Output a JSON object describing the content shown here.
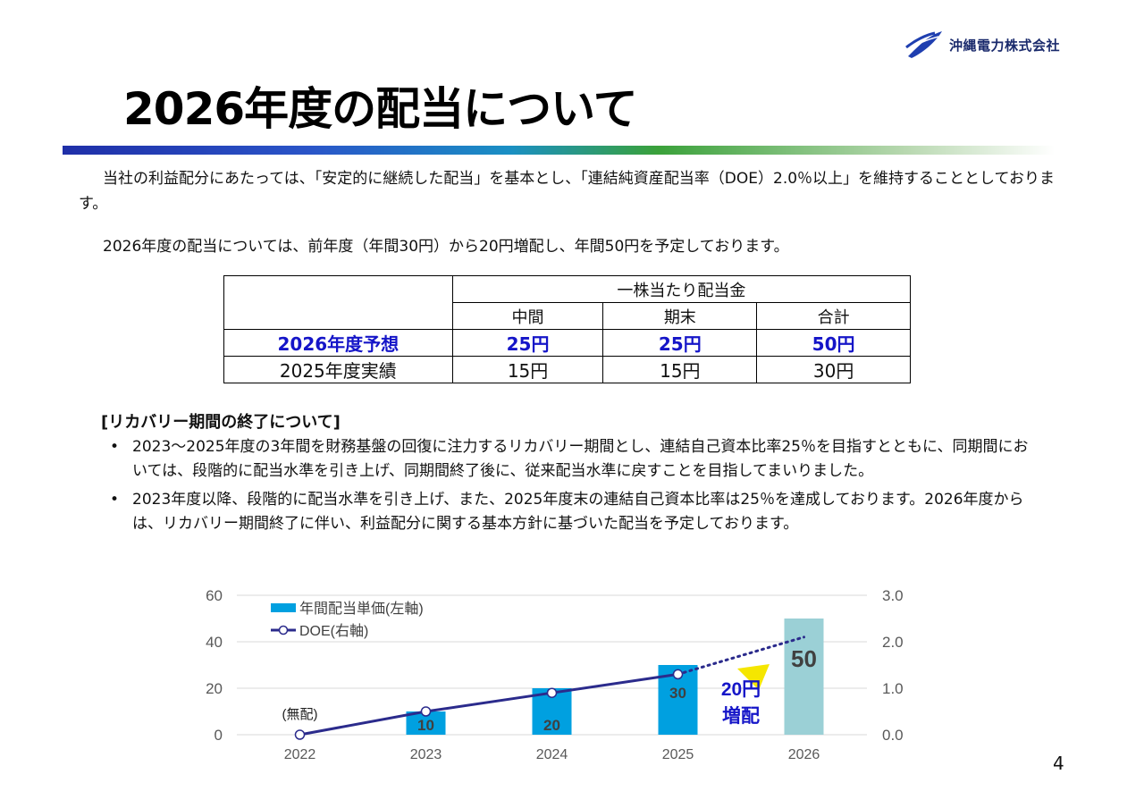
{
  "header": {
    "company_name": "沖縄電力株式会社",
    "logo_icon": "okiden-logo-icon",
    "title": "2026年度の配当について"
  },
  "intro": {
    "p1": "当社の利益配分にあたっては、「安定的に継続した配当」を基本とし、「連結純資産配当率（DOE）2.0％以上」を維持することとしております。",
    "p2": "2026年度の配当については、前年度（年間30円）から20円増配し、年間50円を予定しております。"
  },
  "dividend_table": {
    "group_header": "一株当たり配当金",
    "columns": [
      "中間",
      "期末",
      "合計"
    ],
    "rows": [
      {
        "label": "2026年度予想",
        "values": [
          "25円",
          "25円",
          "50円"
        ]
      },
      {
        "label": "2025年度実績",
        "values": [
          "15円",
          "15円",
          "30円"
        ]
      }
    ]
  },
  "recovery": {
    "heading": "[リカバリー期間の終了について]",
    "bullet_char": "•",
    "bullets": [
      "2023～2025年度の3年間を財務基盤の回復に注力するリカバリー期間とし、連結自己資本比率25％を目指すとともに、同期間においては、段階的に配当水準を引き上げ、同期間終了後に、従来配当水準に戻すことを目指してまいりました。",
      "2023年度以降、段階的に配当水準を引き上げ、また、2025年度末の連結自己資本比率は25％を達成しております。2026年度からは、リカバリー期間終了に伴い、利益配分に関する基本方針に基づいた配当を予定しております。"
    ]
  },
  "chart_data": {
    "type": "bar",
    "categories": [
      "2022",
      "2023",
      "2024",
      "2025",
      "2026"
    ],
    "series": [
      {
        "name": "年間配当単価(左軸)",
        "type": "bar",
        "axis": "left",
        "values": [
          0,
          10,
          20,
          30,
          50
        ],
        "labels": [
          "",
          "10",
          "20",
          "30",
          "50"
        ],
        "colors": [
          "#00a0e0",
          "#00a0e0",
          "#00a0e0",
          "#00a0e0",
          "#9bd0d6"
        ]
      },
      {
        "name": "DOE(右軸)",
        "type": "line",
        "axis": "right",
        "values": [
          0.0,
          0.5,
          0.9,
          1.3,
          2.1
        ],
        "dotted_last_segment": true,
        "color": "#2b2b8c"
      }
    ],
    "ylim_left": [
      0,
      60
    ],
    "yticks_left": [
      "0",
      "20",
      "40",
      "60"
    ],
    "ylim_right": [
      0.0,
      3.0
    ],
    "yticks_right": [
      "0.0",
      "1.0",
      "2.0",
      "3.0"
    ],
    "legend_placement": "top-left",
    "grid": true,
    "annotations": {
      "no_dividend": "(無配)",
      "increase_line1": "20円",
      "increase_line2": "増配"
    }
  },
  "page_number": "4"
}
